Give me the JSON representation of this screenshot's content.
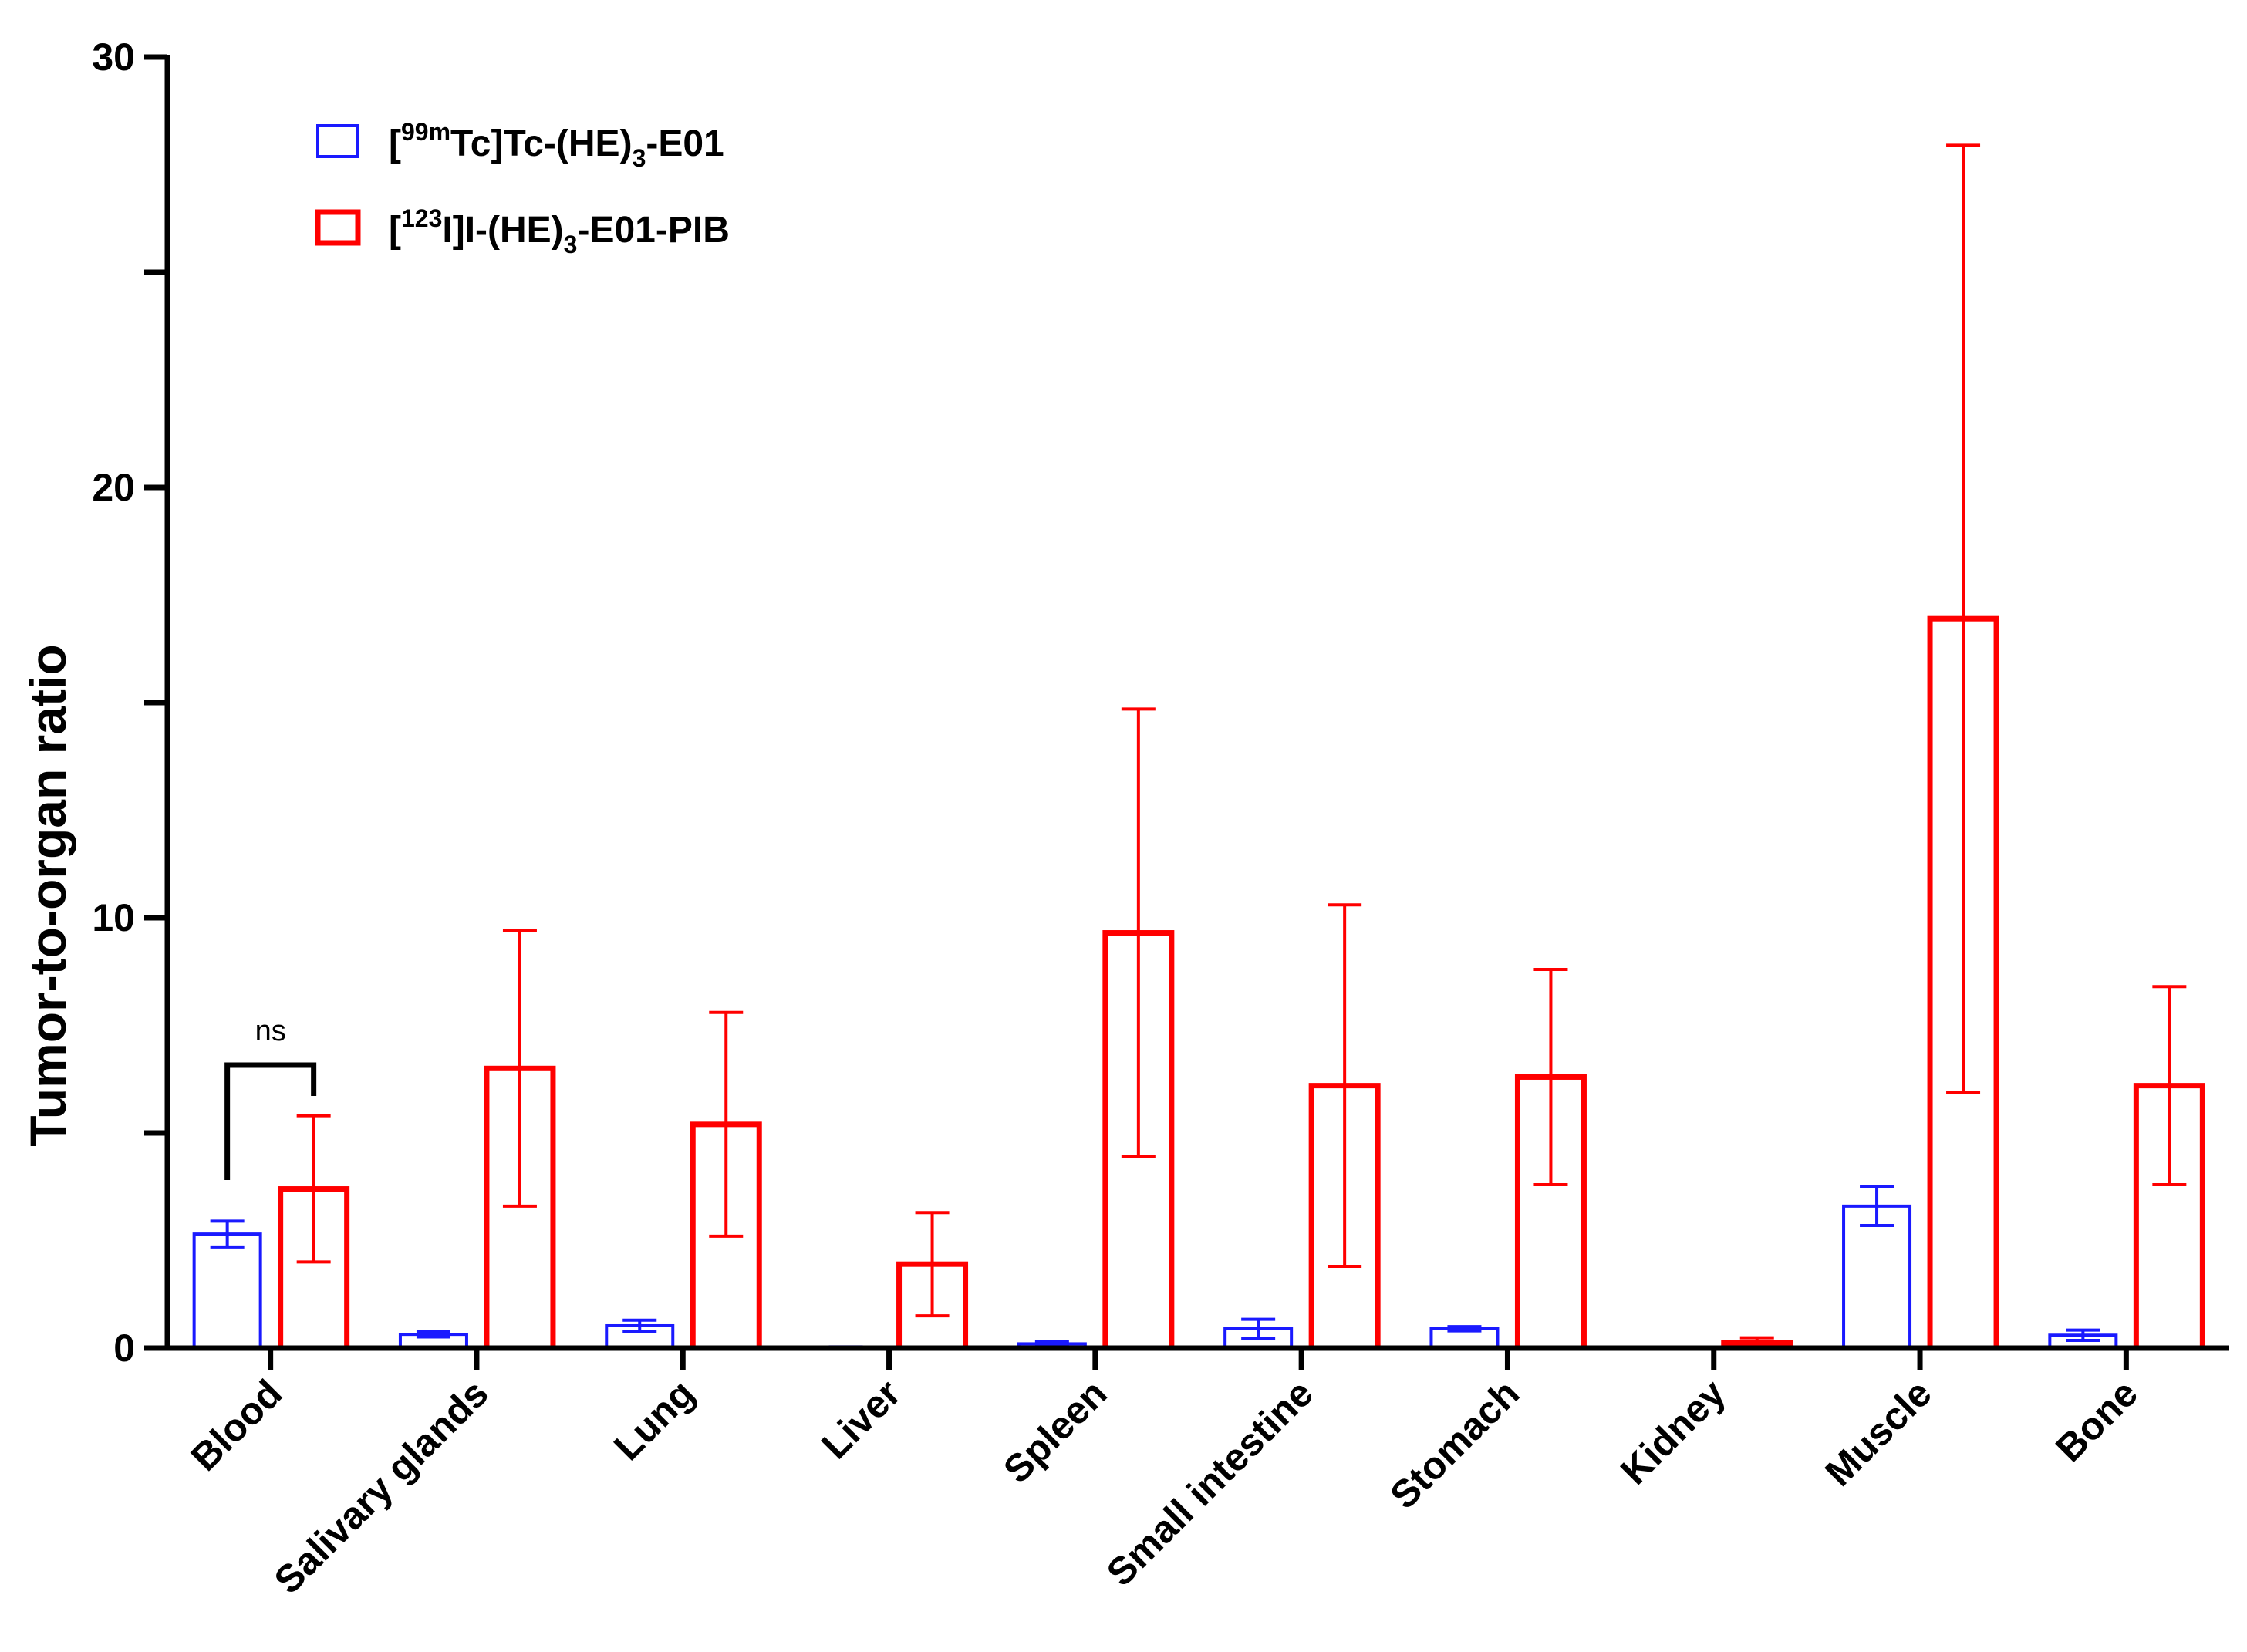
{
  "chart_data": {
    "type": "bar",
    "title": "",
    "xlabel": "",
    "ylabel": "Tumor-to-organ ratio",
    "ylim": [
      0,
      30
    ],
    "yticks": [
      0,
      10,
      20,
      30
    ],
    "yticks_minor_step": 5,
    "grid": false,
    "categories": [
      "Blood",
      "Salivary glands",
      "Lung",
      "Liver",
      "Spleen",
      "Small intestine",
      "Stomach",
      "Kidney",
      "Muscle",
      "Bone"
    ],
    "series": [
      {
        "name": "[99mTc]Tc-(HE)3-E01",
        "label_parts": {
          "pre": "[",
          "sup": "99m",
          "mid": "Tc]Tc-(HE)",
          "sub": "3",
          "post": "-E01"
        },
        "color": "#1a1aff",
        "values": [
          2.65,
          0.32,
          0.52,
          0.02,
          0.1,
          0.45,
          0.45,
          0.0,
          3.3,
          0.3
        ],
        "errors": [
          0.3,
          0.06,
          0.13,
          0.01,
          0.05,
          0.22,
          0.05,
          0.0,
          0.45,
          0.12
        ]
      },
      {
        "name": "[123I]I-(HE)3-E01-PIB",
        "label_parts": {
          "pre": "[",
          "sup": "123",
          "mid": "I]I-(HE)",
          "sub": "3",
          "post": "-E01-PIB"
        },
        "color": "#ff0000",
        "values": [
          3.7,
          6.5,
          5.2,
          1.95,
          9.65,
          6.1,
          6.3,
          0.12,
          16.95,
          6.1
        ],
        "errors": [
          1.7,
          3.2,
          2.6,
          1.2,
          5.2,
          4.2,
          2.5,
          0.12,
          11.0,
          2.3
        ]
      }
    ],
    "legend_position": "top-left",
    "annotations": [
      {
        "type": "bracket",
        "category": "Blood",
        "text": "ns"
      }
    ]
  }
}
